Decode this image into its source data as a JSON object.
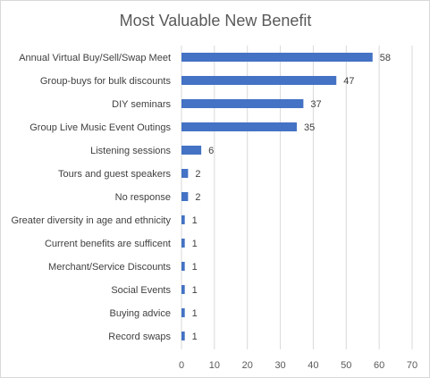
{
  "chart_data": {
    "type": "bar",
    "orientation": "horizontal",
    "title": "Most Valuable New Benefit",
    "categories": [
      "Annual Virtual Buy/Sell/Swap Meet",
      "Group-buys for bulk discounts",
      "DIY seminars",
      "Group Live Music Event Outings",
      "Listening sessions",
      "Tours and guest speakers",
      "No response",
      "Greater diversity in age and ethnicity",
      "Current benefits are sufficent",
      "Merchant/Service Discounts",
      "Social Events",
      "Buying advice",
      "Record swaps"
    ],
    "values": [
      58,
      47,
      37,
      35,
      6,
      2,
      2,
      1,
      1,
      1,
      1,
      1,
      1
    ],
    "xlim": [
      0,
      70
    ],
    "xticks": [
      0,
      10,
      20,
      30,
      40,
      50,
      60,
      70
    ],
    "xlabel": "",
    "ylabel": "",
    "grid": "vertical",
    "legend": "none",
    "bar_color": "#4472c4",
    "grid_color": "#d9d9d9"
  }
}
